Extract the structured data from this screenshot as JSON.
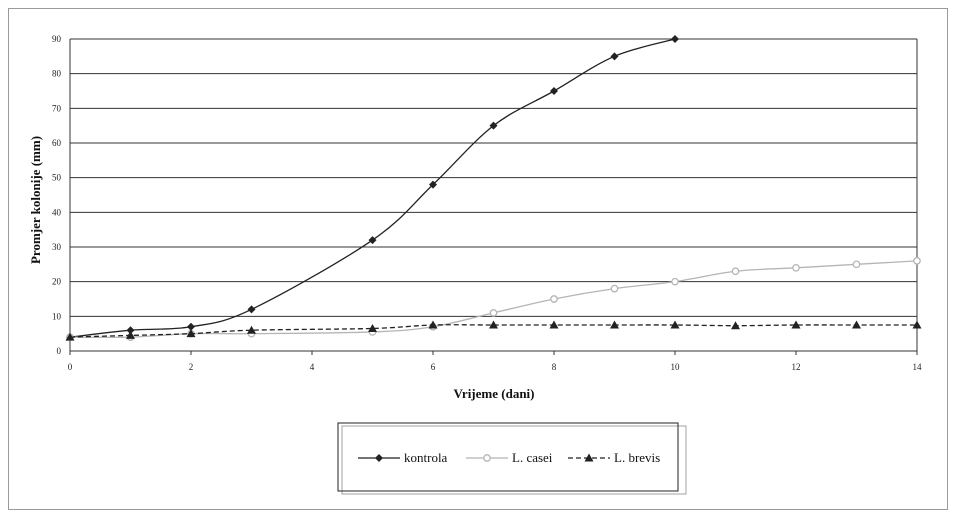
{
  "chart_data": {
    "type": "line",
    "xlabel": "Vrijeme (dani)",
    "ylabel": "Promjer kolonije (mm)",
    "xlim": [
      0,
      14
    ],
    "ylim": [
      0,
      90
    ],
    "xticks": [
      0,
      2,
      4,
      6,
      8,
      10,
      12,
      14
    ],
    "yticks": [
      0,
      10,
      20,
      30,
      40,
      50,
      60,
      70,
      80,
      90
    ],
    "grid": "horizontal",
    "legend_position": "bottom-center",
    "series": [
      {
        "name": "kontrola",
        "marker": "diamond",
        "line": "solid",
        "color": "#222222",
        "x": [
          0,
          1,
          2,
          3,
          5,
          6,
          7,
          8,
          9,
          10
        ],
        "y": [
          4,
          6,
          7,
          12,
          32,
          48,
          65,
          75,
          85,
          90
        ]
      },
      {
        "name": "L. casei",
        "marker": "circle",
        "line": "solid",
        "color": "#b5b5b5",
        "x": [
          0,
          1,
          2,
          3,
          5,
          6,
          7,
          8,
          9,
          10,
          11,
          12,
          13,
          14
        ],
        "y": [
          4,
          4,
          5,
          5,
          5.5,
          7,
          11,
          15,
          18,
          20,
          23,
          24,
          25,
          26
        ]
      },
      {
        "name": "L. brevis",
        "marker": "triangle",
        "line": "dashed",
        "color": "#222222",
        "x": [
          0,
          1,
          2,
          3,
          5,
          6,
          7,
          8,
          9,
          10,
          11,
          12,
          13,
          14
        ],
        "y": [
          4,
          4.5,
          5,
          6,
          6.5,
          7.5,
          7.5,
          7.5,
          7.5,
          7.5,
          7.3,
          7.5,
          7.5,
          7.5
        ]
      }
    ]
  }
}
